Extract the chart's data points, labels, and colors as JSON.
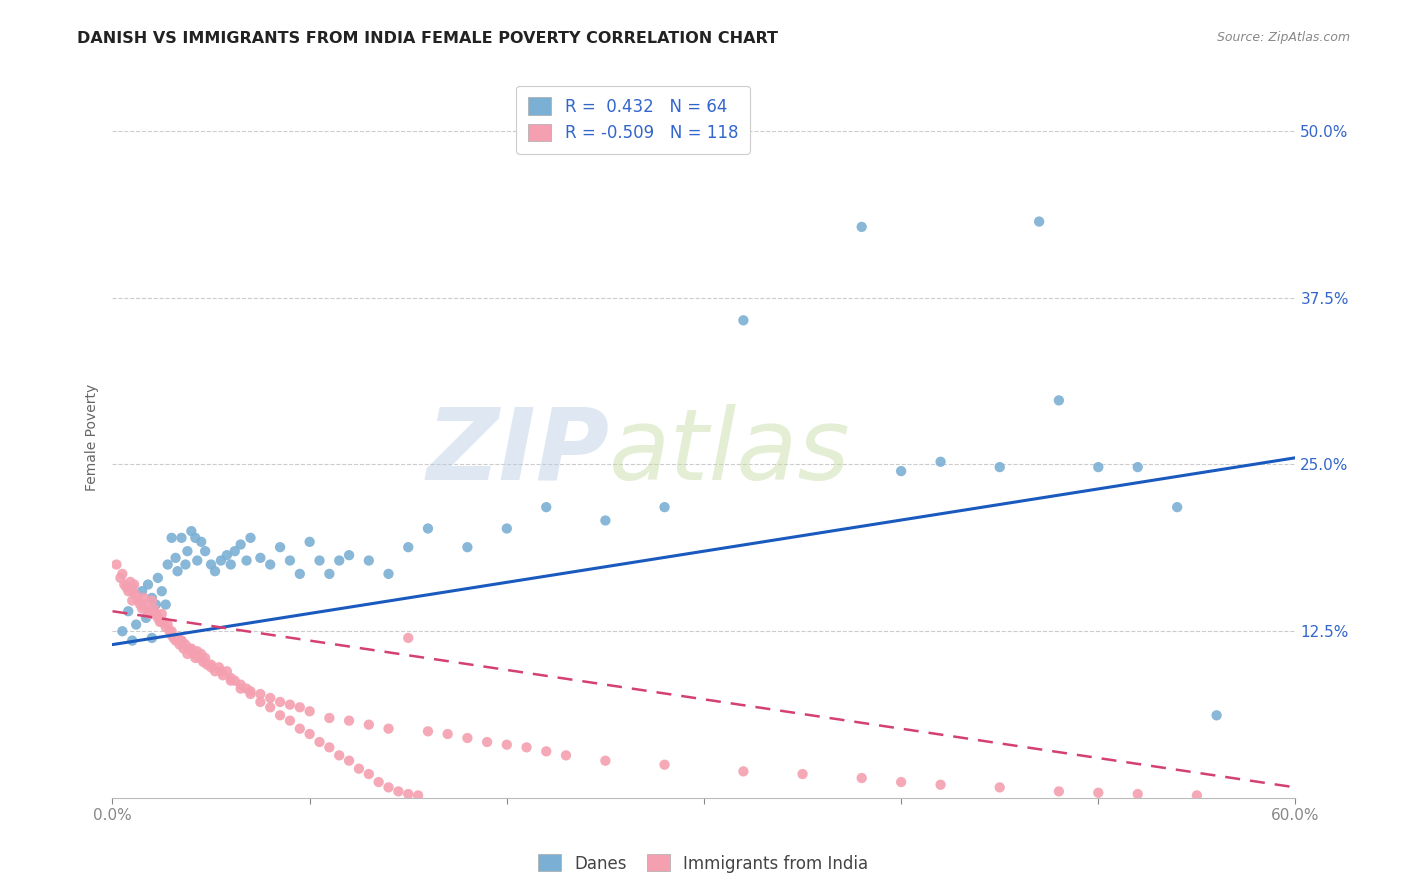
{
  "title": "DANISH VS IMMIGRANTS FROM INDIA FEMALE POVERTY CORRELATION CHART",
  "source": "Source: ZipAtlas.com",
  "ylabel": "Female Poverty",
  "xlim": [
    0.0,
    0.6
  ],
  "ylim": [
    0.0,
    0.54
  ],
  "danes_color": "#7bafd4",
  "india_color": "#f4a0b0",
  "danes_line_color": "#1a5abf",
  "india_line_color": "#d44070",
  "danes_R": 0.432,
  "danes_N": 64,
  "india_R": -0.509,
  "india_N": 118,
  "background_color": "#ffffff",
  "grid_color": "#cccccc",
  "danes_scatter_x": [
    0.005,
    0.008,
    0.01,
    0.012,
    0.015,
    0.017,
    0.018,
    0.02,
    0.02,
    0.022,
    0.023,
    0.025,
    0.027,
    0.028,
    0.03,
    0.032,
    0.033,
    0.035,
    0.037,
    0.038,
    0.04,
    0.042,
    0.043,
    0.045,
    0.047,
    0.05,
    0.052,
    0.055,
    0.058,
    0.06,
    0.062,
    0.065,
    0.068,
    0.07,
    0.075,
    0.08,
    0.085,
    0.09,
    0.095,
    0.1,
    0.105,
    0.11,
    0.115,
    0.12,
    0.13,
    0.14,
    0.15,
    0.16,
    0.18,
    0.2,
    0.22,
    0.25,
    0.28,
    0.32,
    0.38,
    0.42,
    0.45,
    0.48,
    0.5,
    0.52,
    0.54,
    0.56,
    0.4,
    0.47
  ],
  "danes_scatter_y": [
    0.125,
    0.14,
    0.118,
    0.13,
    0.155,
    0.135,
    0.16,
    0.12,
    0.15,
    0.145,
    0.165,
    0.155,
    0.145,
    0.175,
    0.195,
    0.18,
    0.17,
    0.195,
    0.175,
    0.185,
    0.2,
    0.195,
    0.178,
    0.192,
    0.185,
    0.175,
    0.17,
    0.178,
    0.182,
    0.175,
    0.185,
    0.19,
    0.178,
    0.195,
    0.18,
    0.175,
    0.188,
    0.178,
    0.168,
    0.192,
    0.178,
    0.168,
    0.178,
    0.182,
    0.178,
    0.168,
    0.188,
    0.202,
    0.188,
    0.202,
    0.218,
    0.208,
    0.218,
    0.358,
    0.428,
    0.252,
    0.248,
    0.298,
    0.248,
    0.248,
    0.218,
    0.062,
    0.245,
    0.432
  ],
  "india_scatter_x": [
    0.002,
    0.004,
    0.005,
    0.006,
    0.007,
    0.008,
    0.009,
    0.01,
    0.01,
    0.011,
    0.012,
    0.013,
    0.014,
    0.015,
    0.016,
    0.017,
    0.018,
    0.019,
    0.02,
    0.021,
    0.022,
    0.023,
    0.024,
    0.025,
    0.026,
    0.027,
    0.028,
    0.029,
    0.03,
    0.031,
    0.032,
    0.033,
    0.034,
    0.035,
    0.036,
    0.037,
    0.038,
    0.039,
    0.04,
    0.041,
    0.042,
    0.043,
    0.044,
    0.045,
    0.046,
    0.047,
    0.048,
    0.05,
    0.052,
    0.054,
    0.056,
    0.058,
    0.06,
    0.062,
    0.065,
    0.068,
    0.07,
    0.075,
    0.08,
    0.085,
    0.09,
    0.095,
    0.1,
    0.11,
    0.12,
    0.13,
    0.14,
    0.15,
    0.16,
    0.17,
    0.18,
    0.19,
    0.2,
    0.21,
    0.22,
    0.23,
    0.25,
    0.28,
    0.32,
    0.35,
    0.38,
    0.4,
    0.42,
    0.45,
    0.48,
    0.5,
    0.52,
    0.55,
    0.01,
    0.015,
    0.02,
    0.025,
    0.03,
    0.035,
    0.04,
    0.045,
    0.05,
    0.055,
    0.06,
    0.065,
    0.07,
    0.075,
    0.08,
    0.085,
    0.09,
    0.095,
    0.1,
    0.105,
    0.11,
    0.115,
    0.12,
    0.125,
    0.13,
    0.135,
    0.14,
    0.145,
    0.15,
    0.155
  ],
  "india_scatter_y": [
    0.175,
    0.165,
    0.168,
    0.16,
    0.158,
    0.155,
    0.162,
    0.155,
    0.148,
    0.16,
    0.152,
    0.148,
    0.145,
    0.142,
    0.15,
    0.145,
    0.14,
    0.138,
    0.148,
    0.142,
    0.138,
    0.135,
    0.132,
    0.138,
    0.132,
    0.128,
    0.13,
    0.125,
    0.122,
    0.12,
    0.118,
    0.12,
    0.115,
    0.118,
    0.112,
    0.115,
    0.108,
    0.112,
    0.11,
    0.108,
    0.105,
    0.11,
    0.105,
    0.108,
    0.102,
    0.105,
    0.1,
    0.098,
    0.095,
    0.098,
    0.092,
    0.095,
    0.09,
    0.088,
    0.085,
    0.082,
    0.08,
    0.078,
    0.075,
    0.072,
    0.07,
    0.068,
    0.065,
    0.06,
    0.058,
    0.055,
    0.052,
    0.12,
    0.05,
    0.048,
    0.045,
    0.042,
    0.04,
    0.038,
    0.035,
    0.032,
    0.028,
    0.025,
    0.02,
    0.018,
    0.015,
    0.012,
    0.01,
    0.008,
    0.005,
    0.004,
    0.003,
    0.002,
    0.158,
    0.145,
    0.138,
    0.132,
    0.125,
    0.118,
    0.112,
    0.105,
    0.1,
    0.095,
    0.088,
    0.082,
    0.078,
    0.072,
    0.068,
    0.062,
    0.058,
    0.052,
    0.048,
    0.042,
    0.038,
    0.032,
    0.028,
    0.022,
    0.018,
    0.012,
    0.008,
    0.005,
    0.003,
    0.002
  ]
}
